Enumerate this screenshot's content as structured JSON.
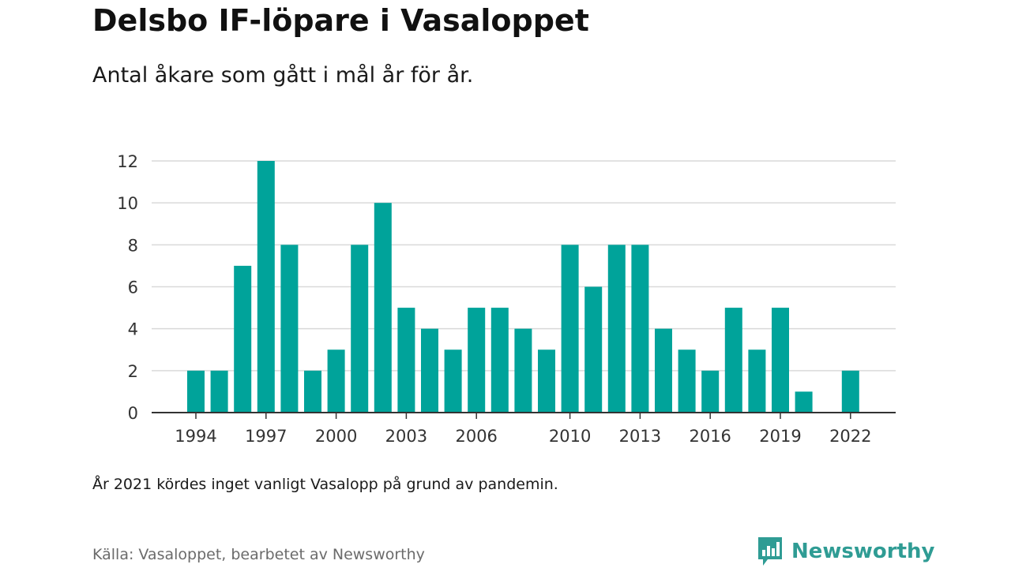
{
  "header": {
    "title": "Delsbo IF-löpare i Vasaloppet",
    "subtitle": "Antal åkare som gått i mål år för år."
  },
  "footer": {
    "note": "År 2021 kördes inget vanligt Vasalopp på grund av pandemin.",
    "source": "Källa: Vasaloppet, bearbetet av Newsworthy",
    "brand": "Newsworthy"
  },
  "colors": {
    "bar": "#00a39a",
    "grid": "#d9d9d9",
    "axis": "#333333",
    "brand": "#2f9c94"
  },
  "chart_data": {
    "type": "bar",
    "title": "Delsbo IF-löpare i Vasaloppet",
    "subtitle": "Antal åkare som gått i mål år för år.",
    "xlabel": "",
    "ylabel": "",
    "categories": [
      1994,
      1995,
      1996,
      1997,
      1998,
      1999,
      2000,
      2001,
      2002,
      2003,
      2004,
      2005,
      2006,
      2007,
      2008,
      2009,
      2010,
      2011,
      2012,
      2013,
      2014,
      2015,
      2016,
      2017,
      2018,
      2019,
      2020,
      2021,
      2022
    ],
    "values": [
      2,
      2,
      7,
      12,
      8,
      2,
      3,
      8,
      10,
      5,
      4,
      3,
      5,
      5,
      4,
      3,
      8,
      6,
      8,
      8,
      4,
      3,
      2,
      5,
      3,
      5,
      1,
      0,
      2
    ],
    "x_ticks": [
      1994,
      1997,
      2000,
      2003,
      2006,
      2010,
      2013,
      2016,
      2019,
      2022
    ],
    "y_ticks": [
      0,
      2,
      4,
      6,
      8,
      10,
      12
    ],
    "ylim": [
      0,
      12
    ],
    "grid": true,
    "legend": "none"
  }
}
